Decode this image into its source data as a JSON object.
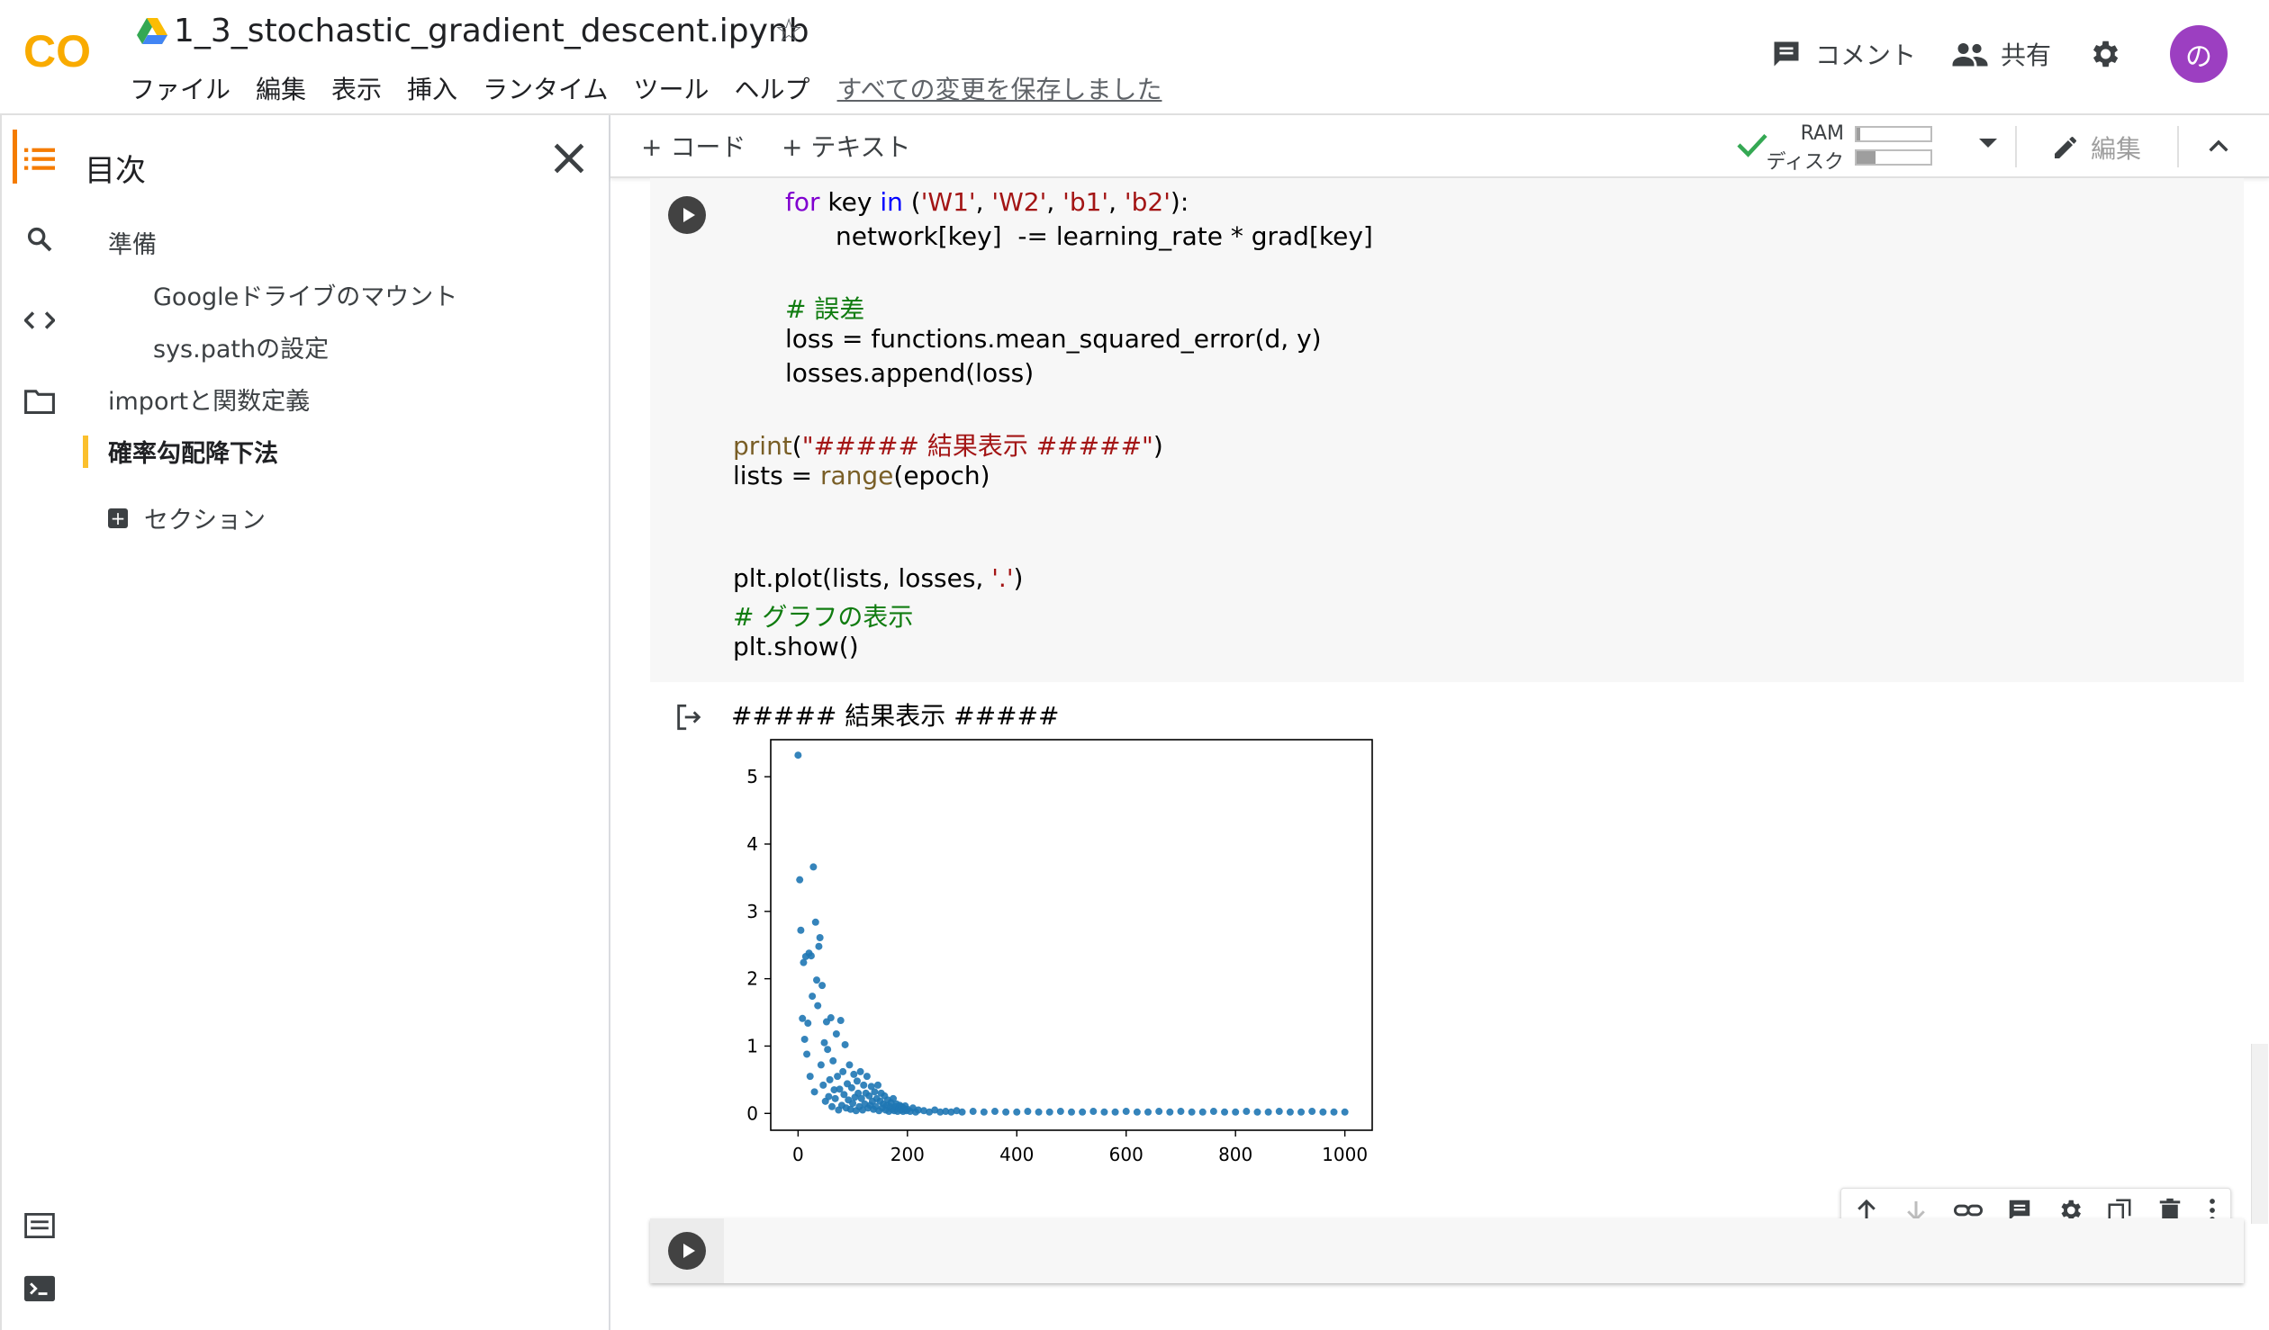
{
  "header": {
    "logo_text": "CO",
    "notebook_title": "1_3_stochastic_gradient_descent.ipynb",
    "menu": [
      "ファイル",
      "編集",
      "表示",
      "挿入",
      "ランタイム",
      "ツール",
      "ヘルプ"
    ],
    "save_status": "すべての変更を保存しました",
    "comment_label": "コメント",
    "share_label": "共有",
    "avatar_letter": "の",
    "avatar_color": "#9c3fc1"
  },
  "toc": {
    "title": "目次",
    "items": [
      "準備",
      "Googleドライブのマウント",
      "sys.pathの設定",
      "importと関数定義",
      "確率勾配降下法"
    ],
    "add_section_label": "セクション",
    "active_item": "確率勾配降下法"
  },
  "toolbar": {
    "add_code_label": "+ コード",
    "add_text_label": "+ テキスト",
    "ram_label": "RAM",
    "disk_label": "ディスク",
    "ram_usage": 0.05,
    "disk_usage": 0.25,
    "edit_label": "編集"
  },
  "code": {
    "l1_kw": "for",
    "l1_a": " key ",
    "l1_in": "in",
    "l1_b": " (",
    "l1_s1": "'W1'",
    "l1_c1": ", ",
    "l1_s2": "'W2'",
    "l1_c2": ", ",
    "l1_s3": "'b1'",
    "l1_c3": ", ",
    "l1_s4": "'b2'",
    "l1_end": "):",
    "l2": "network[key]  -= learning_rate * grad[key]",
    "l3": "# 誤差",
    "l4": "loss = functions.mean_squared_error(d, y)",
    "l5": "losses.append(loss)",
    "l6_fn": "print",
    "l6_a": "(",
    "l6_str": "\"##### 結果表示 #####\"",
    "l6_end": ")",
    "l7_a": "lists = ",
    "l7_fn": "range",
    "l7_end": "(epoch)",
    "l8_a": "plt.plot(lists, losses, ",
    "l8_str": "'.'",
    "l8_end": ")",
    "l9": "# グラフの表示",
    "l10": "plt.show()"
  },
  "output": {
    "text": "##### 結果表示 #####"
  },
  "chart_data": {
    "type": "scatter",
    "title": "",
    "xlabel": "",
    "ylabel": "",
    "xlim": [
      -50,
      1050
    ],
    "ylim": [
      -0.25,
      5.55
    ],
    "xticks": [
      0,
      200,
      400,
      600,
      800,
      1000
    ],
    "yticks": [
      0,
      1,
      2,
      3,
      4,
      5
    ],
    "marker_color": "#1f77b4",
    "grid": false,
    "points": [
      [
        0,
        5.32
      ],
      [
        3,
        3.47
      ],
      [
        5,
        2.72
      ],
      [
        8,
        1.41
      ],
      [
        10,
        2.24
      ],
      [
        12,
        1.1
      ],
      [
        14,
        2.33
      ],
      [
        16,
        0.88
      ],
      [
        18,
        1.34
      ],
      [
        20,
        2.38
      ],
      [
        22,
        0.55
      ],
      [
        24,
        2.34
      ],
      [
        26,
        1.74
      ],
      [
        28,
        3.66
      ],
      [
        30,
        0.32
      ],
      [
        32,
        2.84
      ],
      [
        34,
        1.98
      ],
      [
        36,
        1.6
      ],
      [
        38,
        2.48
      ],
      [
        40,
        2.61
      ],
      [
        42,
        0.72
      ],
      [
        44,
        1.9
      ],
      [
        46,
        0.42
      ],
      [
        48,
        1.05
      ],
      [
        50,
        0.18
      ],
      [
        52,
        1.36
      ],
      [
        54,
        0.95
      ],
      [
        56,
        0.25
      ],
      [
        58,
        0.5
      ],
      [
        60,
        1.42
      ],
      [
        62,
        0.1
      ],
      [
        64,
        0.78
      ],
      [
        66,
        0.35
      ],
      [
        68,
        0.22
      ],
      [
        70,
        1.18
      ],
      [
        72,
        0.55
      ],
      [
        74,
        0.05
      ],
      [
        76,
        0.36
      ],
      [
        78,
        1.38
      ],
      [
        80,
        0.12
      ],
      [
        82,
        0.62
      ],
      [
        84,
        0.28
      ],
      [
        86,
        1.02
      ],
      [
        88,
        0.08
      ],
      [
        90,
        0.44
      ],
      [
        92,
        0.2
      ],
      [
        94,
        0.72
      ],
      [
        96,
        0.06
      ],
      [
        98,
        0.38
      ],
      [
        100,
        0.15
      ],
      [
        102,
        0.58
      ],
      [
        104,
        0.24
      ],
      [
        106,
        0.04
      ],
      [
        108,
        0.48
      ],
      [
        110,
        0.3
      ],
      [
        112,
        0.1
      ],
      [
        114,
        0.62
      ],
      [
        116,
        0.22
      ],
      [
        118,
        0.05
      ],
      [
        120,
        0.42
      ],
      [
        122,
        0.14
      ],
      [
        124,
        0.3
      ],
      [
        126,
        0.55
      ],
      [
        128,
        0.08
      ],
      [
        130,
        0.26
      ],
      [
        132,
        0.12
      ],
      [
        134,
        0.4
      ],
      [
        136,
        0.18
      ],
      [
        138,
        0.06
      ],
      [
        140,
        0.32
      ],
      [
        142,
        0.1
      ],
      [
        144,
        0.22
      ],
      [
        146,
        0.42
      ],
      [
        148,
        0.04
      ],
      [
        150,
        0.18
      ],
      [
        152,
        0.3
      ],
      [
        154,
        0.08
      ],
      [
        156,
        0.14
      ],
      [
        158,
        0.26
      ],
      [
        160,
        0.05
      ],
      [
        162,
        0.12
      ],
      [
        164,
        0.2
      ],
      [
        166,
        0.03
      ],
      [
        168,
        0.1
      ],
      [
        170,
        0.16
      ],
      [
        172,
        0.06
      ],
      [
        174,
        0.22
      ],
      [
        176,
        0.04
      ],
      [
        178,
        0.1
      ],
      [
        180,
        0.14
      ],
      [
        182,
        0.03
      ],
      [
        184,
        0.08
      ],
      [
        186,
        0.12
      ],
      [
        188,
        0.05
      ],
      [
        190,
        0.1
      ],
      [
        192,
        0.03
      ],
      [
        194,
        0.07
      ],
      [
        196,
        0.11
      ],
      [
        198,
        0.04
      ],
      [
        200,
        0.06
      ],
      [
        205,
        0.03
      ],
      [
        210,
        0.08
      ],
      [
        215,
        0.02
      ],
      [
        220,
        0.05
      ],
      [
        230,
        0.04
      ],
      [
        240,
        0.02
      ],
      [
        250,
        0.05
      ],
      [
        260,
        0.02
      ],
      [
        270,
        0.03
      ],
      [
        280,
        0.02
      ],
      [
        290,
        0.04
      ],
      [
        300,
        0.02
      ],
      [
        320,
        0.03
      ],
      [
        340,
        0.02
      ],
      [
        360,
        0.03
      ],
      [
        380,
        0.02
      ],
      [
        400,
        0.02
      ],
      [
        420,
        0.03
      ],
      [
        440,
        0.02
      ],
      [
        460,
        0.02
      ],
      [
        480,
        0.03
      ],
      [
        500,
        0.02
      ],
      [
        520,
        0.02
      ],
      [
        540,
        0.03
      ],
      [
        560,
        0.02
      ],
      [
        580,
        0.02
      ],
      [
        600,
        0.03
      ],
      [
        620,
        0.02
      ],
      [
        640,
        0.02
      ],
      [
        660,
        0.03
      ],
      [
        680,
        0.02
      ],
      [
        700,
        0.03
      ],
      [
        720,
        0.02
      ],
      [
        740,
        0.02
      ],
      [
        760,
        0.03
      ],
      [
        780,
        0.02
      ],
      [
        800,
        0.02
      ],
      [
        820,
        0.03
      ],
      [
        840,
        0.02
      ],
      [
        860,
        0.02
      ],
      [
        880,
        0.03
      ],
      [
        900,
        0.02
      ],
      [
        920,
        0.02
      ],
      [
        940,
        0.03
      ],
      [
        960,
        0.02
      ],
      [
        980,
        0.02
      ],
      [
        1000,
        0.02
      ]
    ]
  }
}
